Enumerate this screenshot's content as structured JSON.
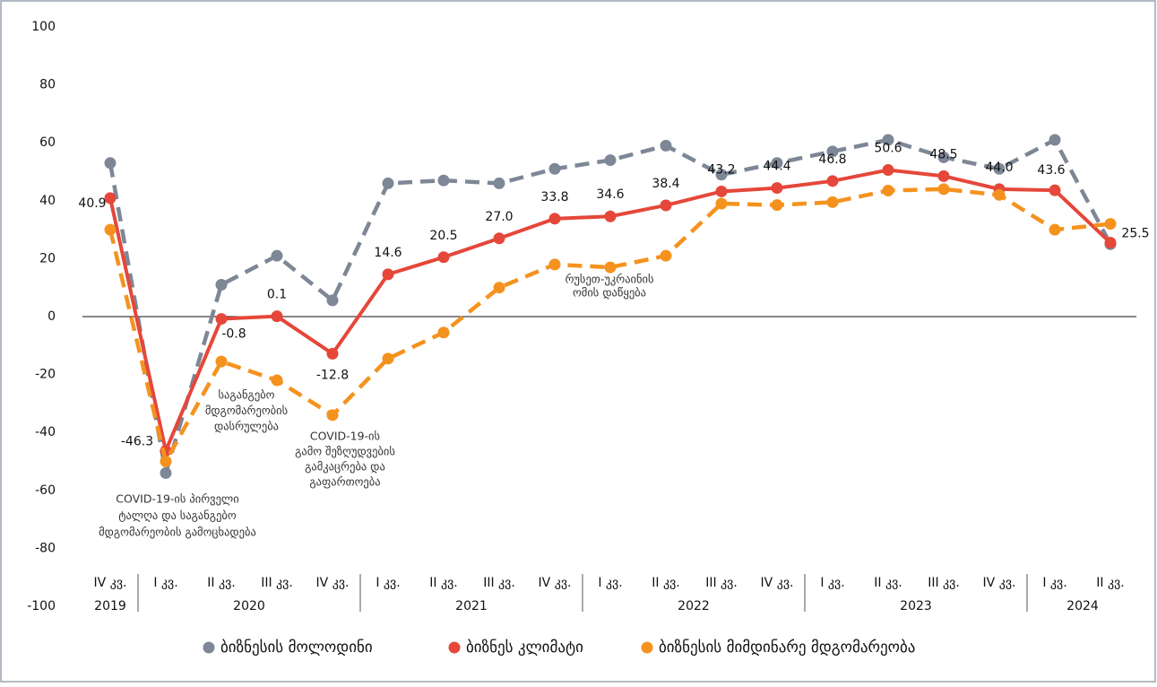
{
  "chart_data": {
    "type": "line",
    "categories": [
      "IV კვ.",
      "I კვ.",
      "II კვ.",
      "III კვ.",
      "IV კვ.",
      "I კვ.",
      "II კვ.",
      "III კვ.",
      "IV კვ.",
      "I კვ.",
      "II კვ.",
      "III კვ.",
      "IV კვ.",
      "I კვ.",
      "II კვ.",
      "III კვ.",
      "IV კვ.",
      "I კვ.",
      "II კვ."
    ],
    "years": [
      "2019",
      "2020",
      null,
      null,
      null,
      "2021",
      null,
      null,
      null,
      "2022",
      null,
      null,
      null,
      "2023",
      null,
      null,
      null,
      "2024",
      null
    ],
    "ylim": [
      -100,
      100
    ],
    "yticks": [
      -100,
      -80,
      -60,
      -40,
      -20,
      0,
      20,
      40,
      60,
      80,
      100
    ],
    "series": [
      {
        "name": "ბიზნესის მოლოდინი",
        "color": "#7d8796",
        "dashed": true,
        "values": [
          53,
          -54,
          11,
          21,
          5.6,
          46,
          47,
          46,
          51,
          54,
          59,
          49,
          53,
          57,
          61,
          55,
          51,
          61,
          25
        ]
      },
      {
        "name": "ბიზნეს კლიმატი",
        "color": "#e5473a",
        "dashed": false,
        "values": [
          40.9,
          -46.3,
          -0.8,
          0.1,
          -12.8,
          14.6,
          20.5,
          27.0,
          33.8,
          34.6,
          38.4,
          43.2,
          44.4,
          46.8,
          50.6,
          48.5,
          44.0,
          43.6,
          25.5
        ],
        "value_labels": [
          "40.9",
          "-46.3",
          "-0.8",
          "0.1",
          "-12.8",
          "14.6",
          "20.5",
          "27.0",
          "33.8",
          "34.6",
          "38.4",
          "43.2",
          "44.4",
          "46.8",
          "50.6",
          "48.5",
          "44.0",
          "43.6",
          "25.5"
        ]
      },
      {
        "name": "ბიზნესის მიმდინარე მდგომარეობა",
        "color": "#f5921e",
        "dashed": true,
        "values": [
          30,
          -50,
          -15.5,
          -22,
          -34,
          -14.5,
          -5.5,
          10,
          18,
          17,
          21,
          39,
          38.5,
          39.5,
          43.5,
          44,
          42,
          30,
          32
        ]
      }
    ],
    "annotations": [
      [
        "COVID-19-ის პირველი",
        "ტალღა და საგანგებო",
        "მდგომარეობის გამოცხადება"
      ],
      [
        "საგანგებო",
        "მდგომარეობის",
        "დასრულება"
      ],
      [
        "COVID-19-ის",
        "გამო შეზღუდვების",
        "გამკაცრება და",
        "გაფართოება"
      ],
      [
        "რუსეთ-უკრაინის",
        "ომის დაწყება"
      ]
    ],
    "legend": "bottom"
  }
}
